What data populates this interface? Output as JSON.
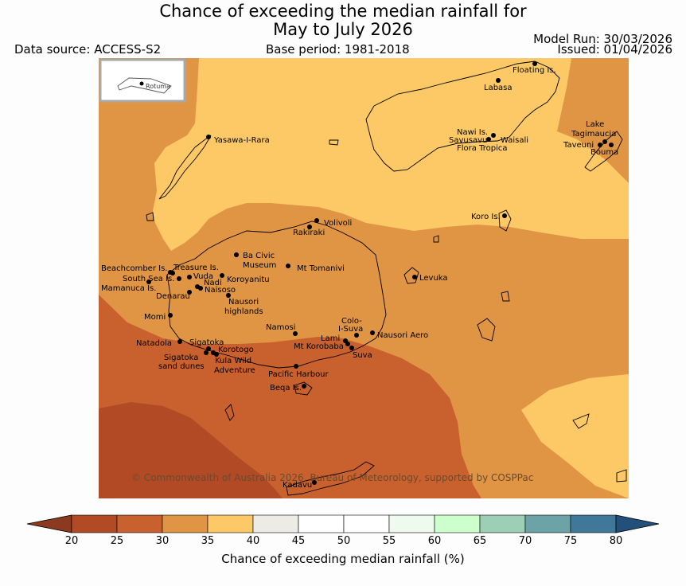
{
  "header": {
    "title_line1": "Chance of exceeding the median rainfall for",
    "title_line2": "May to July 2026",
    "data_source": "Data source: ACCESS-S2",
    "base_period": "Base period: 1981-2018",
    "model_run": "Model Run: 30/03/2026",
    "issued": "Issued: 01/04/2026"
  },
  "map": {
    "inset_label": "Rotuma",
    "copyright": "© Commonwealth of Australia 2026, Bureau of Meteorology, supported by COSPPac",
    "place_labels": [
      "Floating Is.",
      "Labasa",
      "Yasawa-I-Rara",
      "Nawi Is.",
      "Savusavu",
      "Waisali",
      "Flora Tropica",
      "Lake",
      "Tagimaucia",
      "Taveuni",
      "Bouma",
      "Volivoli",
      "Rakiraki",
      "Koro Is.",
      "Ba Civic",
      "Museum",
      "Mt Tomanivi",
      "Beachcomber Is.",
      "Treasure Is.",
      "South Sea Is.",
      "Vuda",
      "Koroyanitu",
      "Mamanuca Is.",
      "Nadi",
      "Naisoso",
      "Denarau",
      "Levuka",
      "Nausori",
      "highlands",
      "Momi",
      "Namosi",
      "Colo-",
      "I-Suva",
      "Natadola",
      "Sigatoka",
      "Lami",
      "Nausori Aero",
      "Mt Korobaba",
      "Korotogo",
      "Suva",
      "Sigatoka",
      "sand dunes",
      "Kula Wild",
      "Adventure",
      "Pacific Harbour",
      "Beqa Is.",
      "Kadavu"
    ],
    "zone_colors": {
      "20-25": "#b24a26",
      "25-30": "#c9612f",
      "30-35": "#e09544",
      "35-40": "#fdc966"
    }
  },
  "colorbar": {
    "ticks": [
      "20",
      "25",
      "30",
      "35",
      "40",
      "45",
      "50",
      "55",
      "60",
      "65",
      "70",
      "75",
      "80"
    ],
    "colors": [
      "#b24a26",
      "#c9612f",
      "#e09544",
      "#fdc966",
      "#edebe6",
      "#ffffff",
      "#ffffff",
      "#eefaee",
      "#ccffcc",
      "#9ccfb6",
      "#6ba3a6",
      "#3f7899"
    ],
    "under_color": "#8b3a1f",
    "over_color": "#234f7b",
    "label": "Chance of exceeding median rainfall (%)"
  }
}
